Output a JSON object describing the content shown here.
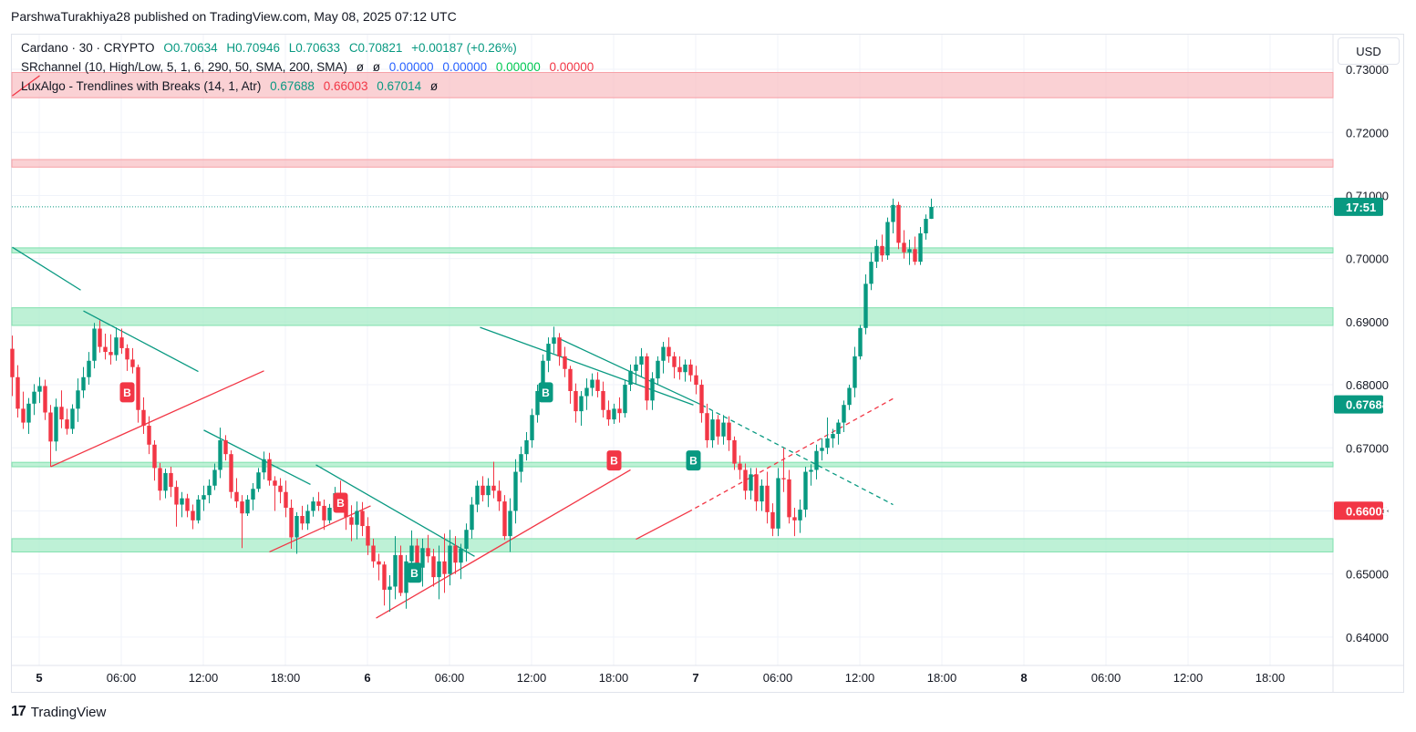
{
  "header": {
    "text": "ParshwaTurakhiya28 published on TradingView.com, May 08, 2025 07:12 UTC"
  },
  "legend": {
    "line1": {
      "symbol": "Cardano · 30 · CRYPTO",
      "o": "O0.70634",
      "h": "H0.70946",
      "l": "L0.70633",
      "c": "C0.70821",
      "chg": "+0.00187 (+0.26%)"
    },
    "line2": {
      "name": "SRchannel (10, High/Low, 5, 1, 6, 290, 50, SMA, 200, SMA)",
      "icon1": "ø",
      "icon2": "ø",
      "v1": "0.00000",
      "v2": "0.00000",
      "v3": "0.00000",
      "v4": "0.00000"
    },
    "line3": {
      "name": "LuxAlgo - Trendlines with Breaks (14, 1, Atr)",
      "v1": "0.67688",
      "v2": "0.66003",
      "v3": "0.67014",
      "icon": "ø"
    }
  },
  "currency": "USD",
  "footer": {
    "logo": "17",
    "brand": "TradingView"
  },
  "colors": {
    "up": "#089981",
    "down": "#f23645",
    "resistance": "#f8b9bd",
    "support": "#a8ecc8",
    "grid": "#f0f3fa"
  },
  "chart_data": {
    "type": "candlestick",
    "title": "Cardano · 30 · CRYPTO",
    "yrange": [
      0.6355,
      0.7355
    ],
    "y_ticks": [
      "0.73000",
      "0.72000",
      "0.71000",
      "0.70000",
      "0.69000",
      "0.68000",
      "0.67000",
      "0.66000",
      "0.65000",
      "0.64000"
    ],
    "x_ticks": [
      "5",
      "06:00",
      "12:00",
      "18:00",
      "6",
      "06:00",
      "12:00",
      "18:00",
      "7",
      "06:00",
      "12:00",
      "18:00",
      "8",
      "06:00",
      "12:00",
      "18:00"
    ],
    "x_tick_slots": [
      2,
      8,
      14,
      20,
      26,
      32,
      38,
      44,
      50,
      56,
      62,
      68,
      74,
      80,
      86,
      92
    ],
    "price_labels": [
      {
        "text": "17:51",
        "value": 0.70821,
        "color": "#089981"
      },
      {
        "text": "0.67688",
        "value": 0.67688,
        "color": "#089981"
      },
      {
        "text": "0.66003",
        "value": 0.66003,
        "color": "#f23645"
      }
    ],
    "zones": [
      {
        "kind": "resistance",
        "top": 0.7295,
        "bottom": 0.7255
      },
      {
        "kind": "resistance",
        "top": 0.7157,
        "bottom": 0.7145
      },
      {
        "kind": "support",
        "top": 0.7017,
        "bottom": 0.7009
      },
      {
        "kind": "support",
        "top": 0.6922,
        "bottom": 0.6894
      },
      {
        "kind": "support",
        "top": 0.6677,
        "bottom": 0.667
      },
      {
        "kind": "support",
        "top": 0.6556,
        "bottom": 0.6535
      }
    ],
    "close_line": 0.70821,
    "candles": [
      [
        0.6857,
        0.6878,
        0.6782,
        0.6812
      ],
      [
        0.6812,
        0.6831,
        0.6748,
        0.6762
      ],
      [
        0.6762,
        0.6789,
        0.673,
        0.674
      ],
      [
        0.674,
        0.6779,
        0.6722,
        0.677
      ],
      [
        0.677,
        0.6801,
        0.6752,
        0.6789
      ],
      [
        0.6789,
        0.6812,
        0.6771,
        0.6798
      ],
      [
        0.6798,
        0.6808,
        0.6744,
        0.6756
      ],
      [
        0.6756,
        0.6768,
        0.667,
        0.671
      ],
      [
        0.671,
        0.6778,
        0.6695,
        0.6765
      ],
      [
        0.6765,
        0.6791,
        0.6731,
        0.6745
      ],
      [
        0.6745,
        0.6762,
        0.6721,
        0.673
      ],
      [
        0.673,
        0.6769,
        0.6722,
        0.6762
      ],
      [
        0.6762,
        0.681,
        0.6741,
        0.6791
      ],
      [
        0.6791,
        0.6828,
        0.6779,
        0.6812
      ],
      [
        0.6812,
        0.6852,
        0.68,
        0.6838
      ],
      [
        0.6838,
        0.6898,
        0.6826,
        0.6889
      ],
      [
        0.6889,
        0.6902,
        0.6851,
        0.686
      ],
      [
        0.686,
        0.6881,
        0.684,
        0.6852
      ],
      [
        0.6852,
        0.688,
        0.6832,
        0.6847
      ],
      [
        0.6847,
        0.6891,
        0.6838,
        0.6875
      ],
      [
        0.6875,
        0.6889,
        0.6849,
        0.6858
      ],
      [
        0.6858,
        0.6864,
        0.6822,
        0.684
      ],
      [
        0.684,
        0.6858,
        0.6818,
        0.6828
      ],
      [
        0.6828,
        0.6832,
        0.674,
        0.676
      ],
      [
        0.676,
        0.678,
        0.6722,
        0.6735
      ],
      [
        0.6735,
        0.675,
        0.669,
        0.6705
      ],
      [
        0.6705,
        0.6712,
        0.6648,
        0.6668
      ],
      [
        0.6668,
        0.6676,
        0.6617,
        0.6632
      ],
      [
        0.6632,
        0.6667,
        0.662,
        0.666
      ],
      [
        0.666,
        0.667,
        0.6622,
        0.6638
      ],
      [
        0.6638,
        0.6648,
        0.6575,
        0.661
      ],
      [
        0.661,
        0.663,
        0.659,
        0.662
      ],
      [
        0.662,
        0.6627,
        0.659,
        0.66
      ],
      [
        0.66,
        0.661,
        0.6571,
        0.6585
      ],
      [
        0.6585,
        0.6625,
        0.658,
        0.6618
      ],
      [
        0.6618,
        0.664,
        0.66,
        0.6625
      ],
      [
        0.6625,
        0.665,
        0.6612,
        0.664
      ],
      [
        0.664,
        0.6675,
        0.6633,
        0.6665
      ],
      [
        0.6665,
        0.6732,
        0.6652,
        0.6712
      ],
      [
        0.6712,
        0.672,
        0.668,
        0.669
      ],
      [
        0.669,
        0.6696,
        0.662,
        0.663
      ],
      [
        0.663,
        0.6652,
        0.6605,
        0.6615
      ],
      [
        0.6615,
        0.6625,
        0.6541,
        0.6596
      ],
      [
        0.6596,
        0.6625,
        0.6592,
        0.6618
      ],
      [
        0.6618,
        0.6644,
        0.6601,
        0.6635
      ],
      [
        0.6635,
        0.6668,
        0.663,
        0.6661
      ],
      [
        0.6661,
        0.6694,
        0.665,
        0.6682
      ],
      [
        0.6682,
        0.6692,
        0.664,
        0.6648
      ],
      [
        0.6648,
        0.6655,
        0.66,
        0.664
      ],
      [
        0.664,
        0.6652,
        0.6612,
        0.663
      ],
      [
        0.663,
        0.6648,
        0.659,
        0.6605
      ],
      [
        0.6605,
        0.6618,
        0.654,
        0.6558
      ],
      [
        0.6558,
        0.6598,
        0.6532,
        0.6592
      ],
      [
        0.6592,
        0.6608,
        0.657,
        0.658
      ],
      [
        0.658,
        0.661,
        0.657,
        0.66
      ],
      [
        0.66,
        0.6622,
        0.6591,
        0.6615
      ],
      [
        0.6615,
        0.663,
        0.66,
        0.6608
      ],
      [
        0.6608,
        0.6618,
        0.657,
        0.6585
      ],
      [
        0.6585,
        0.6611,
        0.658,
        0.6605
      ],
      [
        0.6605,
        0.6638,
        0.6598,
        0.6628
      ],
      [
        0.6628,
        0.6648,
        0.6612,
        0.6618
      ],
      [
        0.6618,
        0.6628,
        0.657,
        0.659
      ],
      [
        0.659,
        0.6609,
        0.6552,
        0.6578
      ],
      [
        0.6578,
        0.6615,
        0.6555,
        0.66
      ],
      [
        0.66,
        0.6614,
        0.656,
        0.6576
      ],
      [
        0.6576,
        0.659,
        0.653,
        0.6545
      ],
      [
        0.6545,
        0.6556,
        0.651,
        0.652
      ],
      [
        0.652,
        0.6532,
        0.649,
        0.6515
      ],
      [
        0.6515,
        0.652,
        0.645,
        0.6475
      ],
      [
        0.6475,
        0.6498,
        0.644,
        0.648
      ],
      [
        0.648,
        0.656,
        0.646,
        0.653
      ],
      [
        0.653,
        0.6545,
        0.6465,
        0.647
      ],
      [
        0.647,
        0.653,
        0.6445,
        0.652
      ],
      [
        0.652,
        0.6569,
        0.6495,
        0.6545
      ],
      [
        0.6545,
        0.6556,
        0.649,
        0.651
      ],
      [
        0.651,
        0.6556,
        0.648,
        0.6541
      ],
      [
        0.6541,
        0.6562,
        0.6518,
        0.6528
      ],
      [
        0.6528,
        0.654,
        0.648,
        0.6495
      ],
      [
        0.6495,
        0.6545,
        0.646,
        0.652
      ],
      [
        0.652,
        0.6564,
        0.647,
        0.65
      ],
      [
        0.65,
        0.657,
        0.6482,
        0.6545
      ],
      [
        0.6545,
        0.656,
        0.65,
        0.6518
      ],
      [
        0.6518,
        0.6548,
        0.6492,
        0.654
      ],
      [
        0.654,
        0.658,
        0.652,
        0.657
      ],
      [
        0.657,
        0.6622,
        0.6556,
        0.661
      ],
      [
        0.661,
        0.6648,
        0.6598,
        0.664
      ],
      [
        0.664,
        0.6655,
        0.6615,
        0.6625
      ],
      [
        0.6625,
        0.6652,
        0.6606,
        0.664
      ],
      [
        0.664,
        0.6678,
        0.662,
        0.6632
      ],
      [
        0.6632,
        0.6648,
        0.66,
        0.6615
      ],
      [
        0.6615,
        0.6625,
        0.6554,
        0.656
      ],
      [
        0.656,
        0.662,
        0.6535,
        0.66
      ],
      [
        0.66,
        0.6682,
        0.658,
        0.6662
      ],
      [
        0.6662,
        0.6702,
        0.6645,
        0.669
      ],
      [
        0.669,
        0.6725,
        0.668,
        0.6712
      ],
      [
        0.6712,
        0.6762,
        0.67,
        0.6752
      ],
      [
        0.6752,
        0.68,
        0.674,
        0.679
      ],
      [
        0.679,
        0.6848,
        0.6775,
        0.6838
      ],
      [
        0.6838,
        0.6875,
        0.682,
        0.6865
      ],
      [
        0.6865,
        0.6892,
        0.685,
        0.6875
      ],
      [
        0.6875,
        0.6882,
        0.683,
        0.6845
      ],
      [
        0.6845,
        0.686,
        0.6812,
        0.6825
      ],
      [
        0.6825,
        0.683,
        0.677,
        0.679
      ],
      [
        0.679,
        0.6802,
        0.674,
        0.6758
      ],
      [
        0.6758,
        0.679,
        0.6735,
        0.6782
      ],
      [
        0.6782,
        0.681,
        0.676,
        0.6795
      ],
      [
        0.6795,
        0.6818,
        0.6782,
        0.6808
      ],
      [
        0.6808,
        0.682,
        0.678,
        0.679
      ],
      [
        0.679,
        0.6805,
        0.6748,
        0.676
      ],
      [
        0.676,
        0.6775,
        0.6735,
        0.6745
      ],
      [
        0.6745,
        0.677,
        0.6738,
        0.6762
      ],
      [
        0.6762,
        0.678,
        0.674,
        0.6755
      ],
      [
        0.6755,
        0.6808,
        0.6748,
        0.68
      ],
      [
        0.68,
        0.6832,
        0.679,
        0.6822
      ],
      [
        0.6822,
        0.6845,
        0.68,
        0.6832
      ],
      [
        0.6832,
        0.6858,
        0.6812,
        0.6845
      ],
      [
        0.6845,
        0.685,
        0.676,
        0.6775
      ],
      [
        0.6775,
        0.682,
        0.676,
        0.681
      ],
      [
        0.681,
        0.6845,
        0.68,
        0.6838
      ],
      [
        0.6838,
        0.6868,
        0.6818,
        0.686
      ],
      [
        0.686,
        0.6875,
        0.6835,
        0.6845
      ],
      [
        0.6845,
        0.6852,
        0.681,
        0.6828
      ],
      [
        0.6828,
        0.6845,
        0.6808,
        0.682
      ],
      [
        0.682,
        0.684,
        0.6805,
        0.6832
      ],
      [
        0.6832,
        0.684,
        0.6805,
        0.6815
      ],
      [
        0.6815,
        0.683,
        0.6785,
        0.68
      ],
      [
        0.68,
        0.6808,
        0.674,
        0.6755
      ],
      [
        0.6755,
        0.677,
        0.67,
        0.6712
      ],
      [
        0.6712,
        0.6758,
        0.67,
        0.6745
      ],
      [
        0.6745,
        0.6752,
        0.6705,
        0.6718
      ],
      [
        0.6718,
        0.6752,
        0.6705,
        0.674
      ],
      [
        0.674,
        0.675,
        0.6695,
        0.6712
      ],
      [
        0.6712,
        0.6718,
        0.6665,
        0.6675
      ],
      [
        0.6675,
        0.6688,
        0.665,
        0.6665
      ],
      [
        0.6665,
        0.6675,
        0.6618,
        0.6632
      ],
      [
        0.6632,
        0.6668,
        0.6618,
        0.6658
      ],
      [
        0.6658,
        0.6668,
        0.66,
        0.6615
      ],
      [
        0.6615,
        0.665,
        0.66,
        0.664
      ],
      [
        0.664,
        0.6662,
        0.658,
        0.6598
      ],
      [
        0.6598,
        0.6612,
        0.656,
        0.6572
      ],
      [
        0.6572,
        0.6668,
        0.656,
        0.6652
      ],
      [
        0.6652,
        0.67,
        0.663,
        0.665
      ],
      [
        0.665,
        0.6665,
        0.658,
        0.659
      ],
      [
        0.659,
        0.6605,
        0.656,
        0.6585
      ],
      [
        0.6585,
        0.6618,
        0.6565,
        0.6602
      ],
      [
        0.6602,
        0.667,
        0.659,
        0.6662
      ],
      [
        0.6662,
        0.6674,
        0.664,
        0.6665
      ],
      [
        0.6665,
        0.6705,
        0.665,
        0.6695
      ],
      [
        0.6695,
        0.6715,
        0.668,
        0.67
      ],
      [
        0.67,
        0.6748,
        0.669,
        0.6715
      ],
      [
        0.6715,
        0.673,
        0.67,
        0.6722
      ],
      [
        0.6722,
        0.6745,
        0.6705,
        0.674
      ],
      [
        0.674,
        0.6775,
        0.6725,
        0.6768
      ],
      [
        0.6768,
        0.68,
        0.676,
        0.6795
      ],
      [
        0.6795,
        0.686,
        0.678,
        0.6845
      ],
      [
        0.6845,
        0.6895,
        0.684,
        0.689
      ],
      [
        0.689,
        0.6975,
        0.688,
        0.696
      ],
      [
        0.696,
        0.701,
        0.695,
        0.6995
      ],
      [
        0.6995,
        0.703,
        0.6985,
        0.702
      ],
      [
        0.702,
        0.7038,
        0.6995,
        0.7005
      ],
      [
        0.7005,
        0.7065,
        0.6998,
        0.7058
      ],
      [
        0.7058,
        0.7095,
        0.704,
        0.7085
      ],
      [
        0.7085,
        0.709,
        0.7015,
        0.7025
      ],
      [
        0.7025,
        0.7045,
        0.7,
        0.701
      ],
      [
        0.701,
        0.703,
        0.699,
        0.7015
      ],
      [
        0.7015,
        0.7035,
        0.699,
        0.6995
      ],
      [
        0.6995,
        0.705,
        0.699,
        0.704
      ],
      [
        0.704,
        0.707,
        0.703,
        0.7063
      ],
      [
        0.7063,
        0.7095,
        0.7063,
        0.7082
      ]
    ],
    "trendlines": [
      {
        "color": "#089981",
        "dashed": false,
        "p1": [
          0,
          0.7018
        ],
        "p2": [
          12.5,
          0.695
        ]
      },
      {
        "color": "#089981",
        "dashed": false,
        "p1": [
          13,
          0.6917
        ],
        "p2": [
          34,
          0.6821
        ]
      },
      {
        "color": "#f23645",
        "dashed": false,
        "p1": [
          7,
          0.667
        ],
        "p2": [
          46,
          0.6822
        ]
      },
      {
        "color": "#089981",
        "dashed": false,
        "p1": [
          35,
          0.6728
        ],
        "p2": [
          54.5,
          0.6642
        ]
      },
      {
        "color": "#f23645",
        "dashed": false,
        "p1": [
          47,
          0.6535
        ],
        "p2": [
          65.5,
          0.6608
        ]
      },
      {
        "color": "#089981",
        "dashed": false,
        "p1": [
          55.5,
          0.6673
        ],
        "p2": [
          84.5,
          0.6528
        ]
      },
      {
        "color": "#f23645",
        "dashed": false,
        "p1": [
          66.5,
          0.643
        ],
        "p2": [
          113,
          0.6665
        ]
      },
      {
        "color": "#089981",
        "dashed": false,
        "p1": [
          85.5,
          0.6891
        ],
        "p2": [
          124.5,
          0.6768
        ]
      },
      {
        "color": "#089981",
        "dashed": false,
        "p1": [
          100,
          0.6873
        ],
        "p2": [
          126,
          0.6768
        ]
      },
      {
        "color": "#089981",
        "dashed": true,
        "p1": [
          126,
          0.6768
        ],
        "p2": [
          161,
          0.661
        ]
      },
      {
        "color": "#f23645",
        "dashed": false,
        "p1": [
          114,
          0.6555
        ],
        "p2": [
          123.5,
          0.6598
        ]
      },
      {
        "color": "#f23645",
        "dashed": true,
        "p1": [
          123.5,
          0.6598
        ],
        "p2": [
          161,
          0.6778
        ]
      },
      {
        "color": "#f23645",
        "dashed": false,
        "p1": [
          0,
          0.7258
        ],
        "p2": [
          5,
          0.729
        ]
      }
    ],
    "break_markers": [
      {
        "text": "B",
        "slot": 21,
        "value": 0.6788,
        "color": "#f23645"
      },
      {
        "text": "B",
        "slot": 60,
        "value": 0.6613,
        "color": "#f23645"
      },
      {
        "text": "B",
        "slot": 73.5,
        "value": 0.6502,
        "color": "#089981"
      },
      {
        "text": "B",
        "slot": 97.5,
        "value": 0.6788,
        "color": "#089981"
      },
      {
        "text": "B",
        "slot": 110,
        "value": 0.668,
        "color": "#f23645"
      },
      {
        "text": "B",
        "slot": 124.5,
        "value": 0.668,
        "color": "#089981"
      }
    ]
  }
}
